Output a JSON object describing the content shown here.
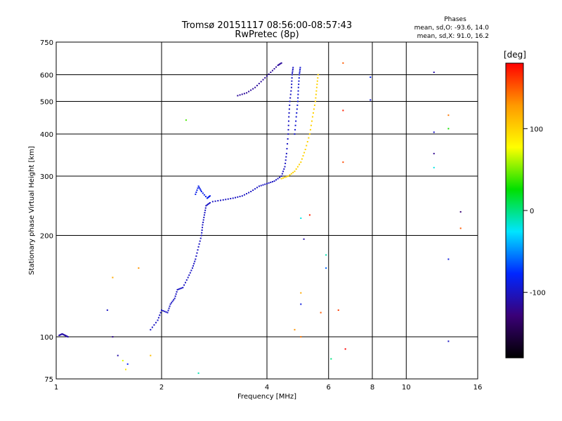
{
  "chart_data": {
    "type": "scatter",
    "title": "Tromsø 20151117 08:56:00-08:57:43",
    "subtitle": "RwPretec (8p)",
    "xlabel": "Frequency [MHz]",
    "ylabel": "Stationary phase Virtual Height [km]",
    "x_scale": "log",
    "y_scale": "log",
    "xlim": [
      1,
      16
    ],
    "ylim": [
      75,
      750
    ],
    "xticks": [
      "1",
      "2",
      "4",
      "6",
      "8",
      "10",
      "16"
    ],
    "yticks": [
      "75",
      "100",
      "200",
      "300",
      "400",
      "500",
      "600",
      "750"
    ],
    "grid": true,
    "stats_block": {
      "heading": "Phases",
      "line_o": "mean, sd,O: -93.6, 14.0",
      "line_x": "mean, sd,X:  91.0, 16.2"
    },
    "colorbar": {
      "label": "[deg]",
      "range": [
        -180,
        180
      ],
      "ticks": [
        "100",
        "0",
        "-100"
      ],
      "stops": [
        "#000000",
        "#3a0077",
        "#0026ff",
        "#00e5ff",
        "#00e000",
        "#ffff00",
        "#ff9900",
        "#ff0000"
      ]
    },
    "traces": [
      {
        "name": "",
        "phase_deg": -110,
        "points": [
          [
            1.02,
            101
          ],
          [
            1.04,
            102
          ],
          [
            1.06,
            101
          ],
          [
            1.08,
            100
          ]
        ]
      },
      {
        "name": "",
        "phase_deg": -100,
        "points": [
          [
            1.86,
            105
          ],
          [
            1.95,
            112
          ],
          [
            2.0,
            120
          ],
          [
            2.08,
            118
          ],
          [
            2.12,
            125
          ],
          [
            2.18,
            130
          ],
          [
            2.22,
            138
          ],
          [
            2.3,
            140
          ],
          [
            2.38,
            150
          ],
          [
            2.45,
            160
          ],
          [
            2.5,
            170
          ],
          [
            2.55,
            185
          ],
          [
            2.6,
            200
          ],
          [
            2.62,
            215
          ],
          [
            2.65,
            230
          ],
          [
            2.68,
            245
          ],
          [
            2.75,
            250
          ]
        ]
      },
      {
        "name": "",
        "phase_deg": -85,
        "points": [
          [
            2.5,
            265
          ],
          [
            2.55,
            280
          ],
          [
            2.6,
            270
          ],
          [
            2.7,
            258
          ],
          [
            2.75,
            262
          ]
        ]
      },
      {
        "name": "",
        "phase_deg": -100,
        "points": [
          [
            2.8,
            252
          ],
          [
            3.0,
            255
          ],
          [
            3.2,
            258
          ],
          [
            3.4,
            262
          ],
          [
            3.6,
            270
          ],
          [
            3.8,
            280
          ],
          [
            4.0,
            285
          ],
          [
            4.2,
            290
          ],
          [
            4.4,
            300
          ],
          [
            4.5,
            320
          ],
          [
            4.55,
            350
          ],
          [
            4.6,
            400
          ],
          [
            4.62,
            450
          ],
          [
            4.65,
            500
          ],
          [
            4.7,
            550
          ],
          [
            4.72,
            600
          ],
          [
            4.75,
            630
          ]
        ]
      },
      {
        "name": "",
        "phase_deg": -115,
        "points": [
          [
            3.3,
            520
          ],
          [
            3.5,
            530
          ],
          [
            3.7,
            550
          ],
          [
            3.9,
            580
          ],
          [
            4.1,
            610
          ],
          [
            4.3,
            640
          ],
          [
            4.4,
            650
          ]
        ]
      },
      {
        "name": "",
        "phase_deg": -95,
        "points": [
          [
            4.8,
            400
          ],
          [
            4.85,
            450
          ],
          [
            4.9,
            500
          ],
          [
            4.92,
            550
          ],
          [
            4.95,
            600
          ],
          [
            4.98,
            630
          ]
        ]
      },
      {
        "name": "",
        "phase_deg": 100,
        "points": [
          [
            4.4,
            295
          ],
          [
            4.6,
            300
          ],
          [
            4.8,
            310
          ],
          [
            5.0,
            330
          ],
          [
            5.15,
            360
          ],
          [
            5.3,
            400
          ],
          [
            5.4,
            450
          ],
          [
            5.5,
            500
          ],
          [
            5.55,
            550
          ],
          [
            5.6,
            600
          ]
        ]
      }
    ],
    "scattered_points": [
      {
        "x": 6.6,
        "y": 650,
        "phase_deg": 150
      },
      {
        "x": 6.6,
        "y": 470,
        "phase_deg": 170
      },
      {
        "x": 6.6,
        "y": 330,
        "phase_deg": 155
      },
      {
        "x": 6.7,
        "y": 92,
        "phase_deg": 180
      },
      {
        "x": 7.9,
        "y": 590,
        "phase_deg": -80
      },
      {
        "x": 7.9,
        "y": 505,
        "phase_deg": -95
      },
      {
        "x": 12.0,
        "y": 610,
        "phase_deg": -110
      },
      {
        "x": 12.0,
        "y": 405,
        "phase_deg": -100
      },
      {
        "x": 12.0,
        "y": 350,
        "phase_deg": -120
      },
      {
        "x": 12.0,
        "y": 318,
        "phase_deg": -20
      },
      {
        "x": 13.2,
        "y": 455,
        "phase_deg": 140
      },
      {
        "x": 13.2,
        "y": 415,
        "phase_deg": 30
      },
      {
        "x": 14.3,
        "y": 235,
        "phase_deg": -130
      },
      {
        "x": 14.3,
        "y": 210,
        "phase_deg": 150
      },
      {
        "x": 13.2,
        "y": 170,
        "phase_deg": -90
      },
      {
        "x": 13.2,
        "y": 97,
        "phase_deg": -100
      },
      {
        "x": 2.35,
        "y": 440,
        "phase_deg": 40
      },
      {
        "x": 1.45,
        "y": 150,
        "phase_deg": 120
      },
      {
        "x": 1.72,
        "y": 160,
        "phase_deg": 130
      },
      {
        "x": 1.4,
        "y": 120,
        "phase_deg": -100
      },
      {
        "x": 1.45,
        "y": 100,
        "phase_deg": -120
      },
      {
        "x": 1.5,
        "y": 88,
        "phase_deg": -110
      },
      {
        "x": 1.55,
        "y": 85,
        "phase_deg": 70
      },
      {
        "x": 1.6,
        "y": 83,
        "phase_deg": -80
      },
      {
        "x": 1.58,
        "y": 80,
        "phase_deg": 90
      },
      {
        "x": 1.86,
        "y": 88,
        "phase_deg": 110
      },
      {
        "x": 2.55,
        "y": 78,
        "phase_deg": -10
      },
      {
        "x": 5.3,
        "y": 230,
        "phase_deg": 170
      },
      {
        "x": 5.1,
        "y": 195,
        "phase_deg": -110
      },
      {
        "x": 5.9,
        "y": 175,
        "phase_deg": -10
      },
      {
        "x": 5.9,
        "y": 160,
        "phase_deg": -60
      },
      {
        "x": 5.0,
        "y": 135,
        "phase_deg": 120
      },
      {
        "x": 5.0,
        "y": 125,
        "phase_deg": -90
      },
      {
        "x": 6.4,
        "y": 120,
        "phase_deg": 160
      },
      {
        "x": 5.7,
        "y": 118,
        "phase_deg": 150
      },
      {
        "x": 4.8,
        "y": 105,
        "phase_deg": 130
      },
      {
        "x": 5.0,
        "y": 100,
        "phase_deg": 140
      },
      {
        "x": 5.0,
        "y": 225,
        "phase_deg": -20
      },
      {
        "x": 6.1,
        "y": 86,
        "phase_deg": 0
      }
    ]
  }
}
